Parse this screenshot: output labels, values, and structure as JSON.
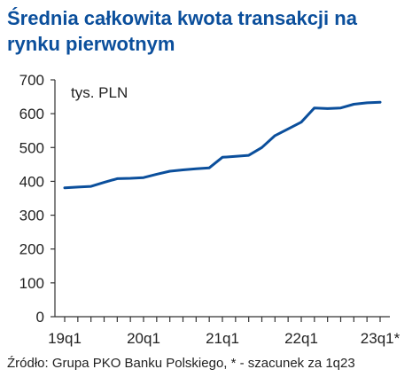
{
  "title_lines": [
    "Średnia całkowita kwota transakcji na",
    "rynku pierwotnym"
  ],
  "source": "Źródło: Grupa PKO Banku Polskiego, *  - szacunek za 1q23",
  "colors": {
    "title": "#0b4f9c",
    "line": "#0b4f9c",
    "axis": "#333333"
  },
  "chart_data": {
    "type": "line",
    "title": "Średnia całkowita kwota transakcji na rynku pierwotnym",
    "unit": "tys. PLN",
    "ylim": [
      0,
      700
    ],
    "yticks": [
      0,
      100,
      200,
      300,
      400,
      500,
      600,
      700
    ],
    "xtick_labels": [
      {
        "index": 0,
        "label": "19q1"
      },
      {
        "index": 6,
        "label": "20q1"
      },
      {
        "index": 12,
        "label": "21q1"
      },
      {
        "index": 18,
        "label": "22q1"
      },
      {
        "index": 24,
        "label": "23q1*"
      }
    ],
    "grid": false,
    "legend": "none",
    "x": [
      0,
      1,
      2,
      3,
      4,
      5,
      6,
      7,
      8,
      9,
      10,
      11,
      12,
      13,
      14,
      15,
      16,
      17,
      18,
      19,
      20,
      21,
      22,
      23,
      24
    ],
    "series": [
      {
        "values": [
          381,
          383,
          385,
          397,
          408,
          409,
          411,
          421,
          430,
          434,
          437,
          440,
          471,
          474,
          477,
          500,
          535,
          555,
          575,
          617,
          615,
          617,
          628,
          632,
          634
        ]
      }
    ]
  }
}
